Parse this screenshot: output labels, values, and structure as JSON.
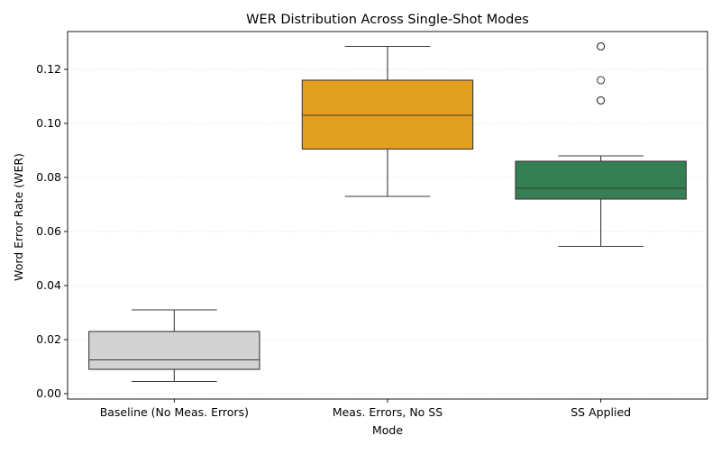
{
  "chart_data": {
    "type": "box",
    "title": "WER Distribution Across Single-Shot Modes",
    "xlabel": "Mode",
    "ylabel": "Word Error Rate (WER)",
    "ylim": [
      -0.002,
      0.134
    ],
    "yticks": [
      0.0,
      0.02,
      0.04,
      0.06,
      0.08,
      0.1,
      0.12
    ],
    "ytick_labels": [
      "0.00",
      "0.02",
      "0.04",
      "0.06",
      "0.08",
      "0.10",
      "0.12"
    ],
    "grid": "horizontal dotted",
    "categories": [
      "Baseline (No Meas. Errors)",
      "Meas. Errors, No SS",
      "SS Applied"
    ],
    "boxes": [
      {
        "category": "Baseline (No Meas. Errors)",
        "whisker_low": 0.0045,
        "q1": 0.009,
        "median": 0.0125,
        "q3": 0.023,
        "whisker_high": 0.031,
        "outliers": [],
        "color": "#d3d3d3"
      },
      {
        "category": "Meas. Errors, No SS",
        "whisker_low": 0.073,
        "q1": 0.0905,
        "median": 0.103,
        "q3": 0.116,
        "whisker_high": 0.1285,
        "outliers": [],
        "color": "#e39f1f"
      },
      {
        "category": "SS Applied",
        "whisker_low": 0.0545,
        "q1": 0.072,
        "median": 0.076,
        "q3": 0.086,
        "whisker_high": 0.088,
        "outliers": [
          0.1285,
          0.1285,
          0.116,
          0.1085,
          0.1085
        ],
        "color": "#367f52"
      }
    ]
  }
}
